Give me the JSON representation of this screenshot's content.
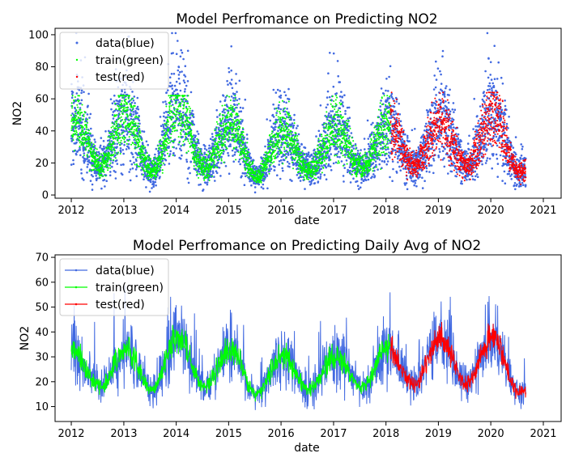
{
  "chart_data": [
    {
      "type": "scatter",
      "title": "Model Perfromance on Predicting NO2",
      "xlabel": "date",
      "ylabel": "NO2",
      "xlim": [
        "2011-09-10",
        "2021-05-05"
      ],
      "ylim": [
        -2,
        104
      ],
      "x_ticks": [
        "2012",
        "2013",
        "2014",
        "2015",
        "2016",
        "2017",
        "2018",
        "2019",
        "2020",
        "2021"
      ],
      "y_ticks": [
        0,
        20,
        40,
        60,
        80,
        100
      ],
      "grid": false,
      "legend_position": "top-left",
      "series": [
        {
          "name": "data(blue)",
          "color": "#4169e1",
          "x_range": [
            "2012-01-01",
            "2020-09-01"
          ],
          "typical_range": [
            5,
            45
          ],
          "max": 101
        },
        {
          "name": "train(green)",
          "color": "#00ff00",
          "x_range": [
            "2012-01-01",
            "2018-01-31"
          ],
          "typical_range": [
            10,
            40
          ],
          "max": 62
        },
        {
          "name": "test(red)",
          "color": "#ff0000",
          "x_range": [
            "2018-02-01",
            "2020-09-01"
          ],
          "typical_range": [
            10,
            40
          ],
          "max": 64
        }
      ],
      "seasonal_peaks": [
        {
          "date": "2012-02",
          "value": 45
        },
        {
          "date": "2013-01",
          "value": 50
        },
        {
          "date": "2014-01",
          "value": 55
        },
        {
          "date": "2015-01",
          "value": 45
        },
        {
          "date": "2016-01",
          "value": 40
        },
        {
          "date": "2017-01",
          "value": 42
        },
        {
          "date": "2018-01",
          "value": 45
        },
        {
          "date": "2019-01",
          "value": 45
        },
        {
          "date": "2020-01",
          "value": 50
        }
      ],
      "seasonal_troughs": [
        {
          "date": "2012-07",
          "value": 18
        },
        {
          "date": "2013-07",
          "value": 15
        },
        {
          "date": "2014-07",
          "value": 17
        },
        {
          "date": "2015-07",
          "value": 12
        },
        {
          "date": "2016-07",
          "value": 15
        },
        {
          "date": "2017-07",
          "value": 17
        },
        {
          "date": "2018-07",
          "value": 18
        },
        {
          "date": "2019-07",
          "value": 18
        },
        {
          "date": "2020-07",
          "value": 15
        }
      ]
    },
    {
      "type": "line",
      "title": "Model Perfromance on Predicting Daily Avg of NO2",
      "xlabel": "date",
      "ylabel": "NO2",
      "xlim": [
        "2011-09-10",
        "2021-05-05"
      ],
      "ylim": [
        4,
        71
      ],
      "x_ticks": [
        "2012",
        "2013",
        "2014",
        "2015",
        "2016",
        "2017",
        "2018",
        "2019",
        "2020",
        "2021"
      ],
      "y_ticks": [
        10,
        20,
        30,
        40,
        50,
        60,
        70
      ],
      "grid": false,
      "legend_position": "top-left",
      "series": [
        {
          "name": "data(blue)",
          "color": "#4169e1",
          "x_range": [
            "2012-01-01",
            "2020-09-01"
          ],
          "typical_range": [
            10,
            40
          ],
          "max": 68
        },
        {
          "name": "train(green)",
          "color": "#00ff00",
          "x_range": [
            "2012-01-01",
            "2018-01-31"
          ],
          "typical_range": [
            15,
            35
          ],
          "max": 49
        },
        {
          "name": "test(red)",
          "color": "#ff0000",
          "x_range": [
            "2018-02-01",
            "2020-09-01"
          ],
          "typical_range": [
            15,
            35
          ],
          "max": 49
        }
      ],
      "seasonal_peaks": [
        {
          "date": "2012-01",
          "value": 32
        },
        {
          "date": "2013-01",
          "value": 33
        },
        {
          "date": "2014-01",
          "value": 38
        },
        {
          "date": "2015-01",
          "value": 33
        },
        {
          "date": "2016-01",
          "value": 30
        },
        {
          "date": "2017-01",
          "value": 30
        },
        {
          "date": "2018-01",
          "value": 33
        },
        {
          "date": "2019-01",
          "value": 38
        },
        {
          "date": "2020-01",
          "value": 38
        }
      ],
      "seasonal_troughs": [
        {
          "date": "2012-07",
          "value": 18
        },
        {
          "date": "2013-07",
          "value": 17
        },
        {
          "date": "2014-07",
          "value": 18
        },
        {
          "date": "2015-07",
          "value": 15
        },
        {
          "date": "2016-07",
          "value": 17
        },
        {
          "date": "2017-07",
          "value": 18
        },
        {
          "date": "2018-07",
          "value": 19
        },
        {
          "date": "2019-07",
          "value": 19
        },
        {
          "date": "2020-07",
          "value": 16
        }
      ]
    }
  ]
}
